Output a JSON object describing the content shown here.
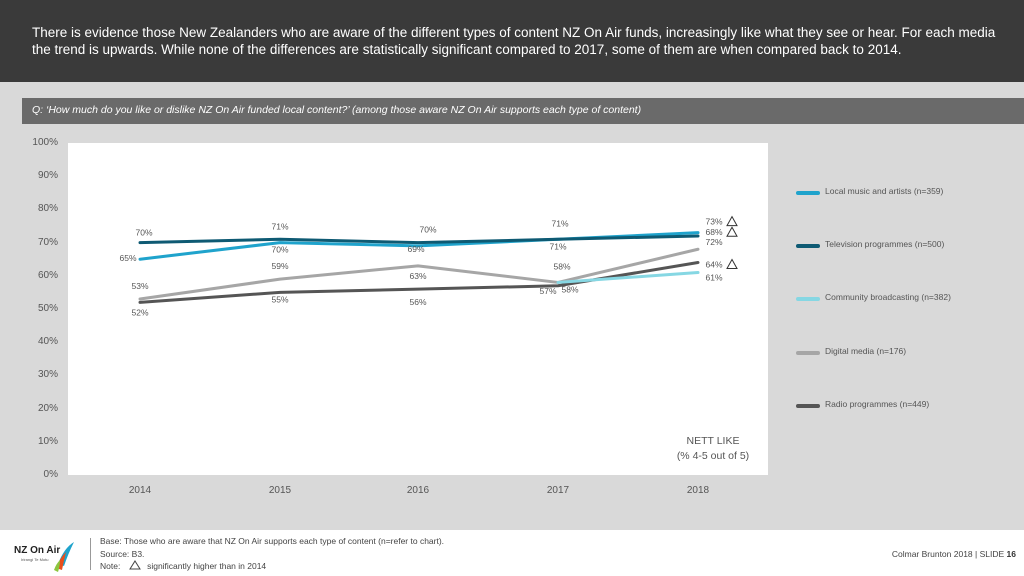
{
  "header": {
    "text": "There is evidence those New Zealanders who are aware of the different types of content NZ On Air funds, increasingly like what they see or hear. For each media the trend is upwards. While none of the differences are statistically significant compared to 2017, some of them are when compared back to 2014."
  },
  "question": "Q: ‘How much do you like or dislike NZ On Air funded local content?’ (among those aware NZ On Air supports each type of content)",
  "chart_data": {
    "type": "line",
    "title": "",
    "xlabel": "",
    "ylabel": "",
    "x": [
      "2014",
      "2015",
      "2016",
      "2017",
      "2018"
    ],
    "ylim": [
      0,
      100
    ],
    "y_ticks": [
      "0%",
      "10%",
      "20%",
      "30%",
      "40%",
      "50%",
      "60%",
      "70%",
      "80%",
      "90%",
      "100%"
    ],
    "series": [
      {
        "name": "Local music and artists (n=359)",
        "color": "#1fa3cc",
        "values": [
          65,
          70,
          69,
          71,
          73
        ],
        "labels": [
          "65%",
          "70%",
          "69%",
          "71%",
          "73%"
        ],
        "significant": [
          false,
          false,
          false,
          false,
          true
        ]
      },
      {
        "name": "Television programmes (n=500)",
        "color": "#0e5a73",
        "values": [
          70,
          71,
          70,
          71,
          72
        ],
        "labels": [
          "70%",
          "71%",
          "70%",
          "71%",
          "72%"
        ],
        "significant": [
          false,
          false,
          false,
          false,
          false
        ]
      },
      {
        "name": "Community broadcasting (n=382)",
        "color": "#86d7e3",
        "values": [
          null,
          null,
          null,
          58,
          61
        ],
        "labels": [
          "",
          "",
          "",
          "58%",
          "61%"
        ],
        "significant": [
          false,
          false,
          false,
          false,
          false
        ]
      },
      {
        "name": "Digital media (n=176)",
        "color": "#a6a6a6",
        "values": [
          53,
          59,
          63,
          58,
          68
        ],
        "labels": [
          "53%",
          "59%",
          "63%",
          "58%",
          "68%"
        ],
        "significant": [
          false,
          false,
          false,
          false,
          true
        ]
      },
      {
        "name": "Radio programmes (n=449)",
        "color": "#555555",
        "values": [
          52,
          55,
          56,
          57,
          64
        ],
        "labels": [
          "52%",
          "55%",
          "56%",
          "57%",
          "64%"
        ],
        "significant": [
          false,
          false,
          false,
          false,
          true
        ]
      }
    ],
    "annotation": "NETT LIKE",
    "annotation_sub": "(% 4-5 out of 5)"
  },
  "legend": {
    "items": [
      {
        "label": "Local music and artists (n=359)",
        "color": "#1fa3cc"
      },
      {
        "label": "Television programmes (n=500)",
        "color": "#0e5a73"
      },
      {
        "label": "Community broadcasting (n=382)",
        "color": "#86d7e3"
      },
      {
        "label": "Digital media (n=176)",
        "color": "#a6a6a6"
      },
      {
        "label": "Radio programmes (n=449)",
        "color": "#555555"
      }
    ]
  },
  "footer": {
    "base": "Base: Those who are aware that NZ On Air supports each type of content (n=refer to chart).",
    "source": "Source: B3.",
    "note_prefix": "Note:",
    "note_text": "significantly higher than in 2014",
    "credit": "Colmar Brunton 2018 | SLIDE",
    "slide_number": "16",
    "logo_text": "NZ On Air",
    "logo_sub": "Irirangi Te Motu"
  }
}
